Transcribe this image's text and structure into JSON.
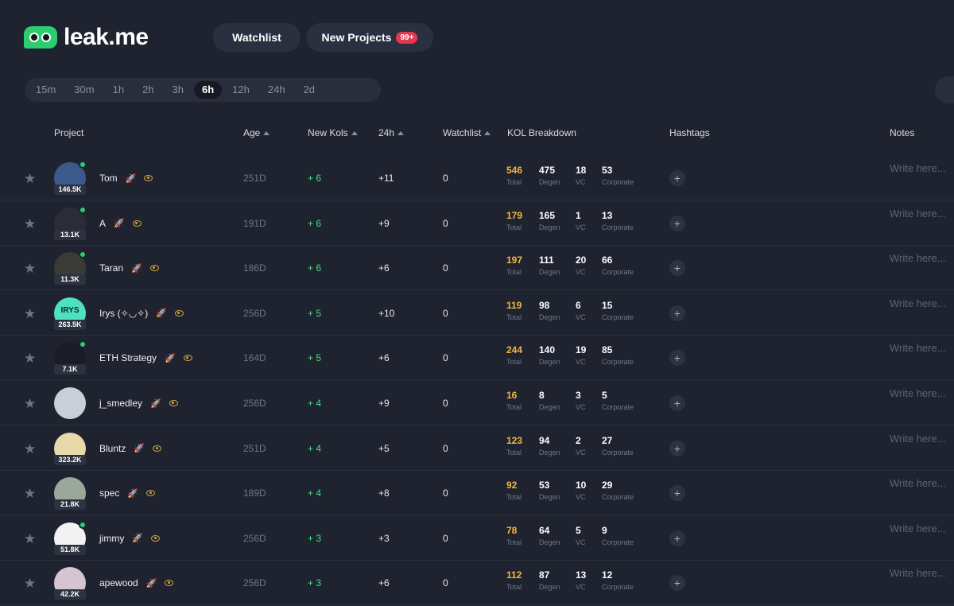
{
  "brand": {
    "name": "leak.me",
    "accent": "#2ecc71"
  },
  "header": {
    "watchlist_label": "Watchlist",
    "new_projects_label": "New Projects",
    "new_projects_badge": "99+"
  },
  "timeframes": [
    "15m",
    "30m",
    "1h",
    "2h",
    "3h",
    "6h",
    "12h",
    "24h",
    "2d"
  ],
  "active_timeframe": "6h",
  "columns": {
    "project": "Project",
    "age": "Age",
    "new_kols": "New Kols",
    "h24": "24h",
    "watchlist": "Watchlist",
    "kol_breakdown": "KOL Breakdown",
    "hashtags": "Hashtags",
    "notes": "Notes"
  },
  "kol_labels": {
    "total": "Total",
    "degen": "Degen",
    "vc": "VC",
    "corporate": "Corporate"
  },
  "notes_placeholder": "Write here...",
  "rows": [
    {
      "name": "Tom",
      "followers": "146.5K",
      "age": "251D",
      "new_kols": "+ 6",
      "h24": "+11",
      "watchlist": "0",
      "total": "546",
      "degen": "475",
      "vc": "18",
      "corporate": "53",
      "online": true,
      "avatar_color": "#3b5a8c"
    },
    {
      "name": "A",
      "followers": "13.1K",
      "age": "191D",
      "new_kols": "+ 6",
      "h24": "+9",
      "watchlist": "0",
      "total": "179",
      "degen": "165",
      "vc": "1",
      "corporate": "13",
      "online": true,
      "avatar_color": "#2c2c38"
    },
    {
      "name": "Taran",
      "followers": "11.3K",
      "age": "186D",
      "new_kols": "+ 6",
      "h24": "+6",
      "watchlist": "0",
      "total": "197",
      "degen": "111",
      "vc": "20",
      "corporate": "66",
      "online": true,
      "avatar_color": "#3a3b35"
    },
    {
      "name": "Irys (✧◡✧)",
      "followers": "263.5K",
      "age": "256D",
      "new_kols": "+ 5",
      "h24": "+10",
      "watchlist": "0",
      "total": "119",
      "degen": "98",
      "vc": "6",
      "corporate": "15",
      "online": false,
      "avatar_color": "#4fe0c2",
      "avatar_text": "IRYS"
    },
    {
      "name": "ETH Strategy",
      "followers": "7.1K",
      "age": "164D",
      "new_kols": "+ 5",
      "h24": "+6",
      "watchlist": "0",
      "total": "244",
      "degen": "140",
      "vc": "19",
      "corporate": "85",
      "online": true,
      "avatar_color": "#1a1d26"
    },
    {
      "name": "j_smedley",
      "followers": "",
      "age": "256D",
      "new_kols": "+ 4",
      "h24": "+9",
      "watchlist": "0",
      "total": "16",
      "degen": "8",
      "vc": "3",
      "corporate": "5",
      "online": false,
      "avatar_color": "#c9ced8"
    },
    {
      "name": "Bluntz",
      "followers": "323.2K",
      "age": "251D",
      "new_kols": "+ 4",
      "h24": "+5",
      "watchlist": "0",
      "total": "123",
      "degen": "94",
      "vc": "2",
      "corporate": "27",
      "online": false,
      "avatar_color": "#e8d9a8"
    },
    {
      "name": "spec",
      "followers": "21.8K",
      "age": "189D",
      "new_kols": "+ 4",
      "h24": "+8",
      "watchlist": "0",
      "total": "92",
      "degen": "53",
      "vc": "10",
      "corporate": "29",
      "online": false,
      "avatar_color": "#9aa79a"
    },
    {
      "name": "jimmy",
      "followers": "51.8K",
      "age": "256D",
      "new_kols": "+ 3",
      "h24": "+3",
      "watchlist": "0",
      "total": "78",
      "degen": "64",
      "vc": "5",
      "corporate": "9",
      "online": true,
      "avatar_color": "#f2f2f2"
    },
    {
      "name": "apewood",
      "followers": "42.2K",
      "age": "256D",
      "new_kols": "+ 3",
      "h24": "+6",
      "watchlist": "0",
      "total": "112",
      "degen": "87",
      "vc": "13",
      "corporate": "12",
      "online": false,
      "avatar_color": "#d6c4d0"
    }
  ]
}
